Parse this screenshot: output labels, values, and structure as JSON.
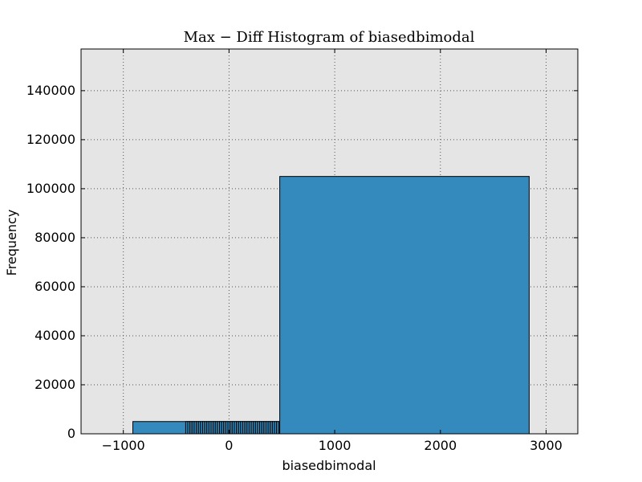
{
  "chart_data": {
    "type": "bar",
    "title": "Max − Diff Histogram of biasedbimodal",
    "xlabel": "biasedbimodal",
    "ylabel": "Frequency",
    "xlim": [
      -1400,
      3300
    ],
    "ylim": [
      0,
      157000
    ],
    "xticks": [
      -1000,
      0,
      1000,
      2000,
      3000
    ],
    "xtick_labels": [
      "−1000",
      "0",
      "1000",
      "2000",
      "3000"
    ],
    "yticks": [
      0,
      20000,
      40000,
      60000,
      80000,
      100000,
      120000,
      140000
    ],
    "ytick_labels": [
      "0",
      "20000",
      "40000",
      "60000",
      "80000",
      "100000",
      "120000",
      "140000"
    ],
    "grid": true,
    "bins": [
      {
        "x0": -910,
        "x1": 480,
        "count": 5000
      },
      {
        "x0": 480,
        "x1": 2840,
        "count": 105000
      }
    ],
    "small_bins": {
      "x_start": -410,
      "x_end": 470,
      "count": 5000,
      "n": 44
    },
    "colors": {
      "bar": "#348abd",
      "edge": "#000000",
      "background": "#e5e5e5",
      "grid": "#555555"
    }
  }
}
